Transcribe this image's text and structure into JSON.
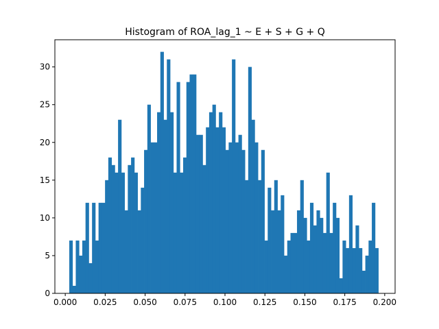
{
  "chart_data": {
    "type": "bar",
    "title": "Histogram of ROA_lag_1 ~ E + S + G + Q",
    "xlabel": "",
    "ylabel": "",
    "xlim": [
      -0.0065,
      0.2065
    ],
    "ylim": [
      0,
      33.6
    ],
    "grid": false,
    "bar_color": "#1f77b4",
    "x_ticks": [
      0.0,
      0.025,
      0.05,
      0.075,
      0.1,
      0.125,
      0.15,
      0.175,
      0.2
    ],
    "x_tick_labels": [
      "0.000",
      "0.025",
      "0.050",
      "0.075",
      "0.100",
      "0.125",
      "0.150",
      "0.175",
      "0.200"
    ],
    "y_ticks": [
      0,
      5,
      10,
      15,
      20,
      25,
      30
    ],
    "y_tick_labels": [
      "0",
      "5",
      "10",
      "15",
      "20",
      "25",
      "30"
    ],
    "bin_start": 0.0025,
    "bin_end": 0.196,
    "counts": [
      7,
      1,
      7,
      5,
      7,
      12,
      4,
      12,
      7,
      12,
      12,
      15,
      18,
      17,
      16,
      23,
      16,
      11,
      17,
      18,
      16,
      11,
      14,
      19,
      25,
      20,
      20,
      24,
      32,
      23,
      31,
      24,
      16,
      28,
      16,
      18,
      28,
      29,
      29,
      21,
      21,
      17,
      22,
      24,
      25,
      22,
      24,
      22,
      19,
      20,
      31,
      20,
      21,
      19,
      15,
      30,
      23,
      20,
      15,
      19,
      7,
      14,
      11,
      15,
      11,
      13,
      5,
      7,
      8,
      8,
      11,
      15,
      10,
      7,
      12,
      9,
      11,
      10,
      8,
      16,
      8,
      12,
      10,
      2,
      7,
      6,
      13,
      6,
      9,
      6,
      3,
      5,
      7,
      12,
      6
    ]
  }
}
